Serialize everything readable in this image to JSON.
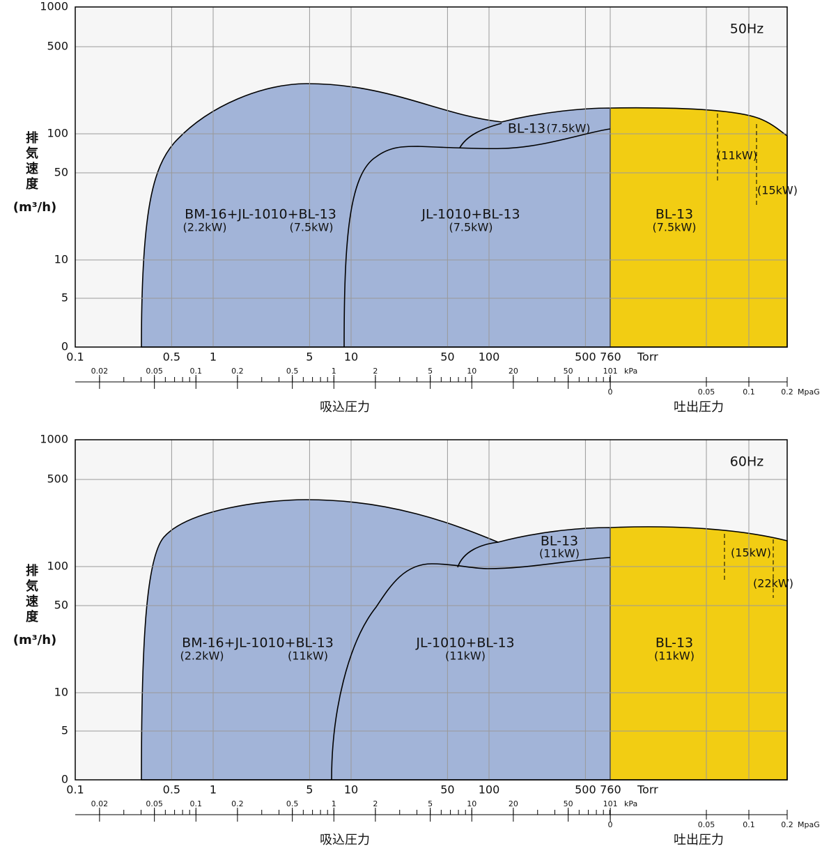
{
  "charts": [
    {
      "frequency": "50Hz",
      "y_axis_label": "排気速度",
      "y_axis_unit": "(m³/h)",
      "yticks": [
        "1000",
        "500",
        "100",
        "50",
        "10",
        "5",
        "0"
      ],
      "torr_ticks": [
        "0.1",
        "0.5",
        "1",
        "5",
        "10",
        "50",
        "100",
        "500",
        "760"
      ],
      "torr_unit": "Torr",
      "kpa_ticks": [
        "0.02",
        "0.05",
        "0.1",
        "0.2",
        "0.5",
        "1",
        "2",
        "5",
        "10",
        "20",
        "50",
        "101"
      ],
      "kpa_unit": "kPa",
      "mpag_ticks": [
        "0",
        "0.05",
        "0.1",
        "0.2"
      ],
      "mpag_unit": "MpaG",
      "suction_label": "吸込圧力",
      "discharge_label": "吐出圧力",
      "labels": [
        "BM-16+JL-1010+BL-13",
        "(2.2kW)",
        "(7.5kW)",
        "JL-1010+BL-13",
        "(7.5kW)",
        "BL-13",
        "(7.5kW)",
        "BL-13",
        "(7.5kW)",
        "(11kW)",
        "(15kW)"
      ]
    },
    {
      "frequency": "60Hz",
      "y_axis_label": "排気速度",
      "y_axis_unit": "(m³/h)",
      "yticks": [
        "1000",
        "500",
        "100",
        "50",
        "10",
        "5",
        "0"
      ],
      "torr_ticks": [
        "0.1",
        "0.5",
        "1",
        "5",
        "10",
        "50",
        "100",
        "500",
        "760"
      ],
      "torr_unit": "Torr",
      "kpa_ticks": [
        "0.02",
        "0.05",
        "0.1",
        "0.2",
        "0.5",
        "1",
        "2",
        "5",
        "10",
        "20",
        "50",
        "101"
      ],
      "kpa_unit": "kPa",
      "mpag_ticks": [
        "0",
        "0.05",
        "0.1",
        "0.2"
      ],
      "mpag_unit": "MpaG",
      "suction_label": "吸込圧力",
      "discharge_label": "吐出圧力",
      "labels": [
        "BM-16+JL-1010+BL-13",
        "(2.2kW)",
        "(11kW)",
        "JL-1010+BL-13",
        "(11kW)",
        "BL-13",
        "(11kW)",
        "BL-13",
        "(11kW)",
        "(15kW)",
        "(22kW)"
      ]
    }
  ]
}
